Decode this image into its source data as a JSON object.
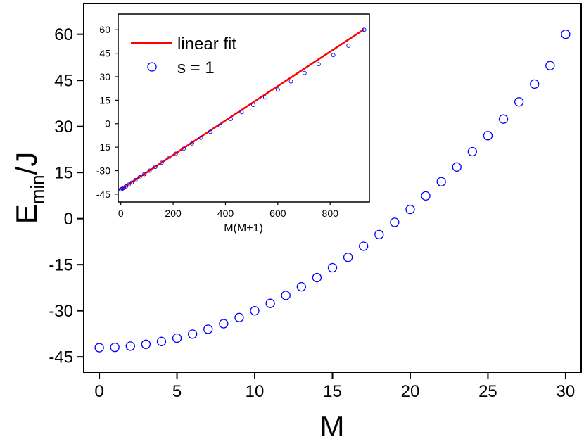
{
  "chart_data": [
    {
      "type": "scatter",
      "xlabel": "M",
      "ylabel_main": "E",
      "ylabel_sub": "min",
      "ylabel_tail": "/J",
      "xlim": [
        -1,
        31
      ],
      "ylim": [
        -50,
        70
      ],
      "xticks": [
        0,
        5,
        10,
        15,
        20,
        25,
        30
      ],
      "yticks": [
        -45,
        -30,
        -15,
        0,
        15,
        30,
        45,
        60
      ],
      "series": [
        {
          "name": "s = 1",
          "marker": "open-circle",
          "color": "#0000ff",
          "x": [
            0,
            1,
            2,
            3,
            4,
            5,
            6,
            7,
            8,
            9,
            10,
            11,
            12,
            13,
            14,
            15,
            16,
            17,
            18,
            19,
            20,
            21,
            22,
            23,
            24,
            25,
            26,
            27,
            28,
            29,
            30
          ],
          "y": [
            -42.0,
            -41.9,
            -41.5,
            -40.9,
            -40.0,
            -38.9,
            -37.6,
            -36.0,
            -34.2,
            -32.2,
            -30.0,
            -27.6,
            -25.0,
            -22.2,
            -19.2,
            -16.0,
            -12.6,
            -9.0,
            -5.2,
            -1.2,
            3.0,
            7.4,
            12.0,
            16.8,
            21.8,
            27.0,
            32.4,
            38.0,
            43.8,
            49.8,
            60.0
          ]
        }
      ]
    },
    {
      "type": "scatter",
      "xlabel": "M(M+1)",
      "ylabel": "",
      "xlim": [
        -10,
        950
      ],
      "ylim": [
        -50,
        70
      ],
      "xticks": [
        0,
        200,
        400,
        600,
        800
      ],
      "yticks": [
        -45,
        -30,
        -15,
        0,
        15,
        30,
        45,
        60
      ],
      "legend_position": "top-left",
      "series": [
        {
          "name": "linear fit",
          "kind": "line",
          "color": "#ff0000",
          "x": [
            0,
            930
          ],
          "y": [
            -42.0,
            60.3
          ]
        },
        {
          "name": "s = 1",
          "kind": "points",
          "marker": "open-circle",
          "color": "#0000ff",
          "x": [
            0,
            2,
            6,
            12,
            20,
            30,
            42,
            56,
            72,
            90,
            110,
            132,
            156,
            182,
            210,
            240,
            272,
            306,
            342,
            380,
            420,
            462,
            506,
            552,
            600,
            650,
            702,
            756,
            812,
            870,
            930
          ],
          "y": [
            -42.0,
            -41.9,
            -41.5,
            -40.9,
            -40.0,
            -38.9,
            -37.6,
            -36.0,
            -34.2,
            -32.2,
            -30.0,
            -27.6,
            -25.0,
            -22.2,
            -19.2,
            -16.0,
            -12.6,
            -9.0,
            -5.2,
            -1.2,
            3.0,
            7.4,
            12.0,
            16.8,
            21.8,
            27.0,
            32.4,
            38.0,
            43.8,
            49.8,
            60.0
          ]
        }
      ]
    }
  ]
}
